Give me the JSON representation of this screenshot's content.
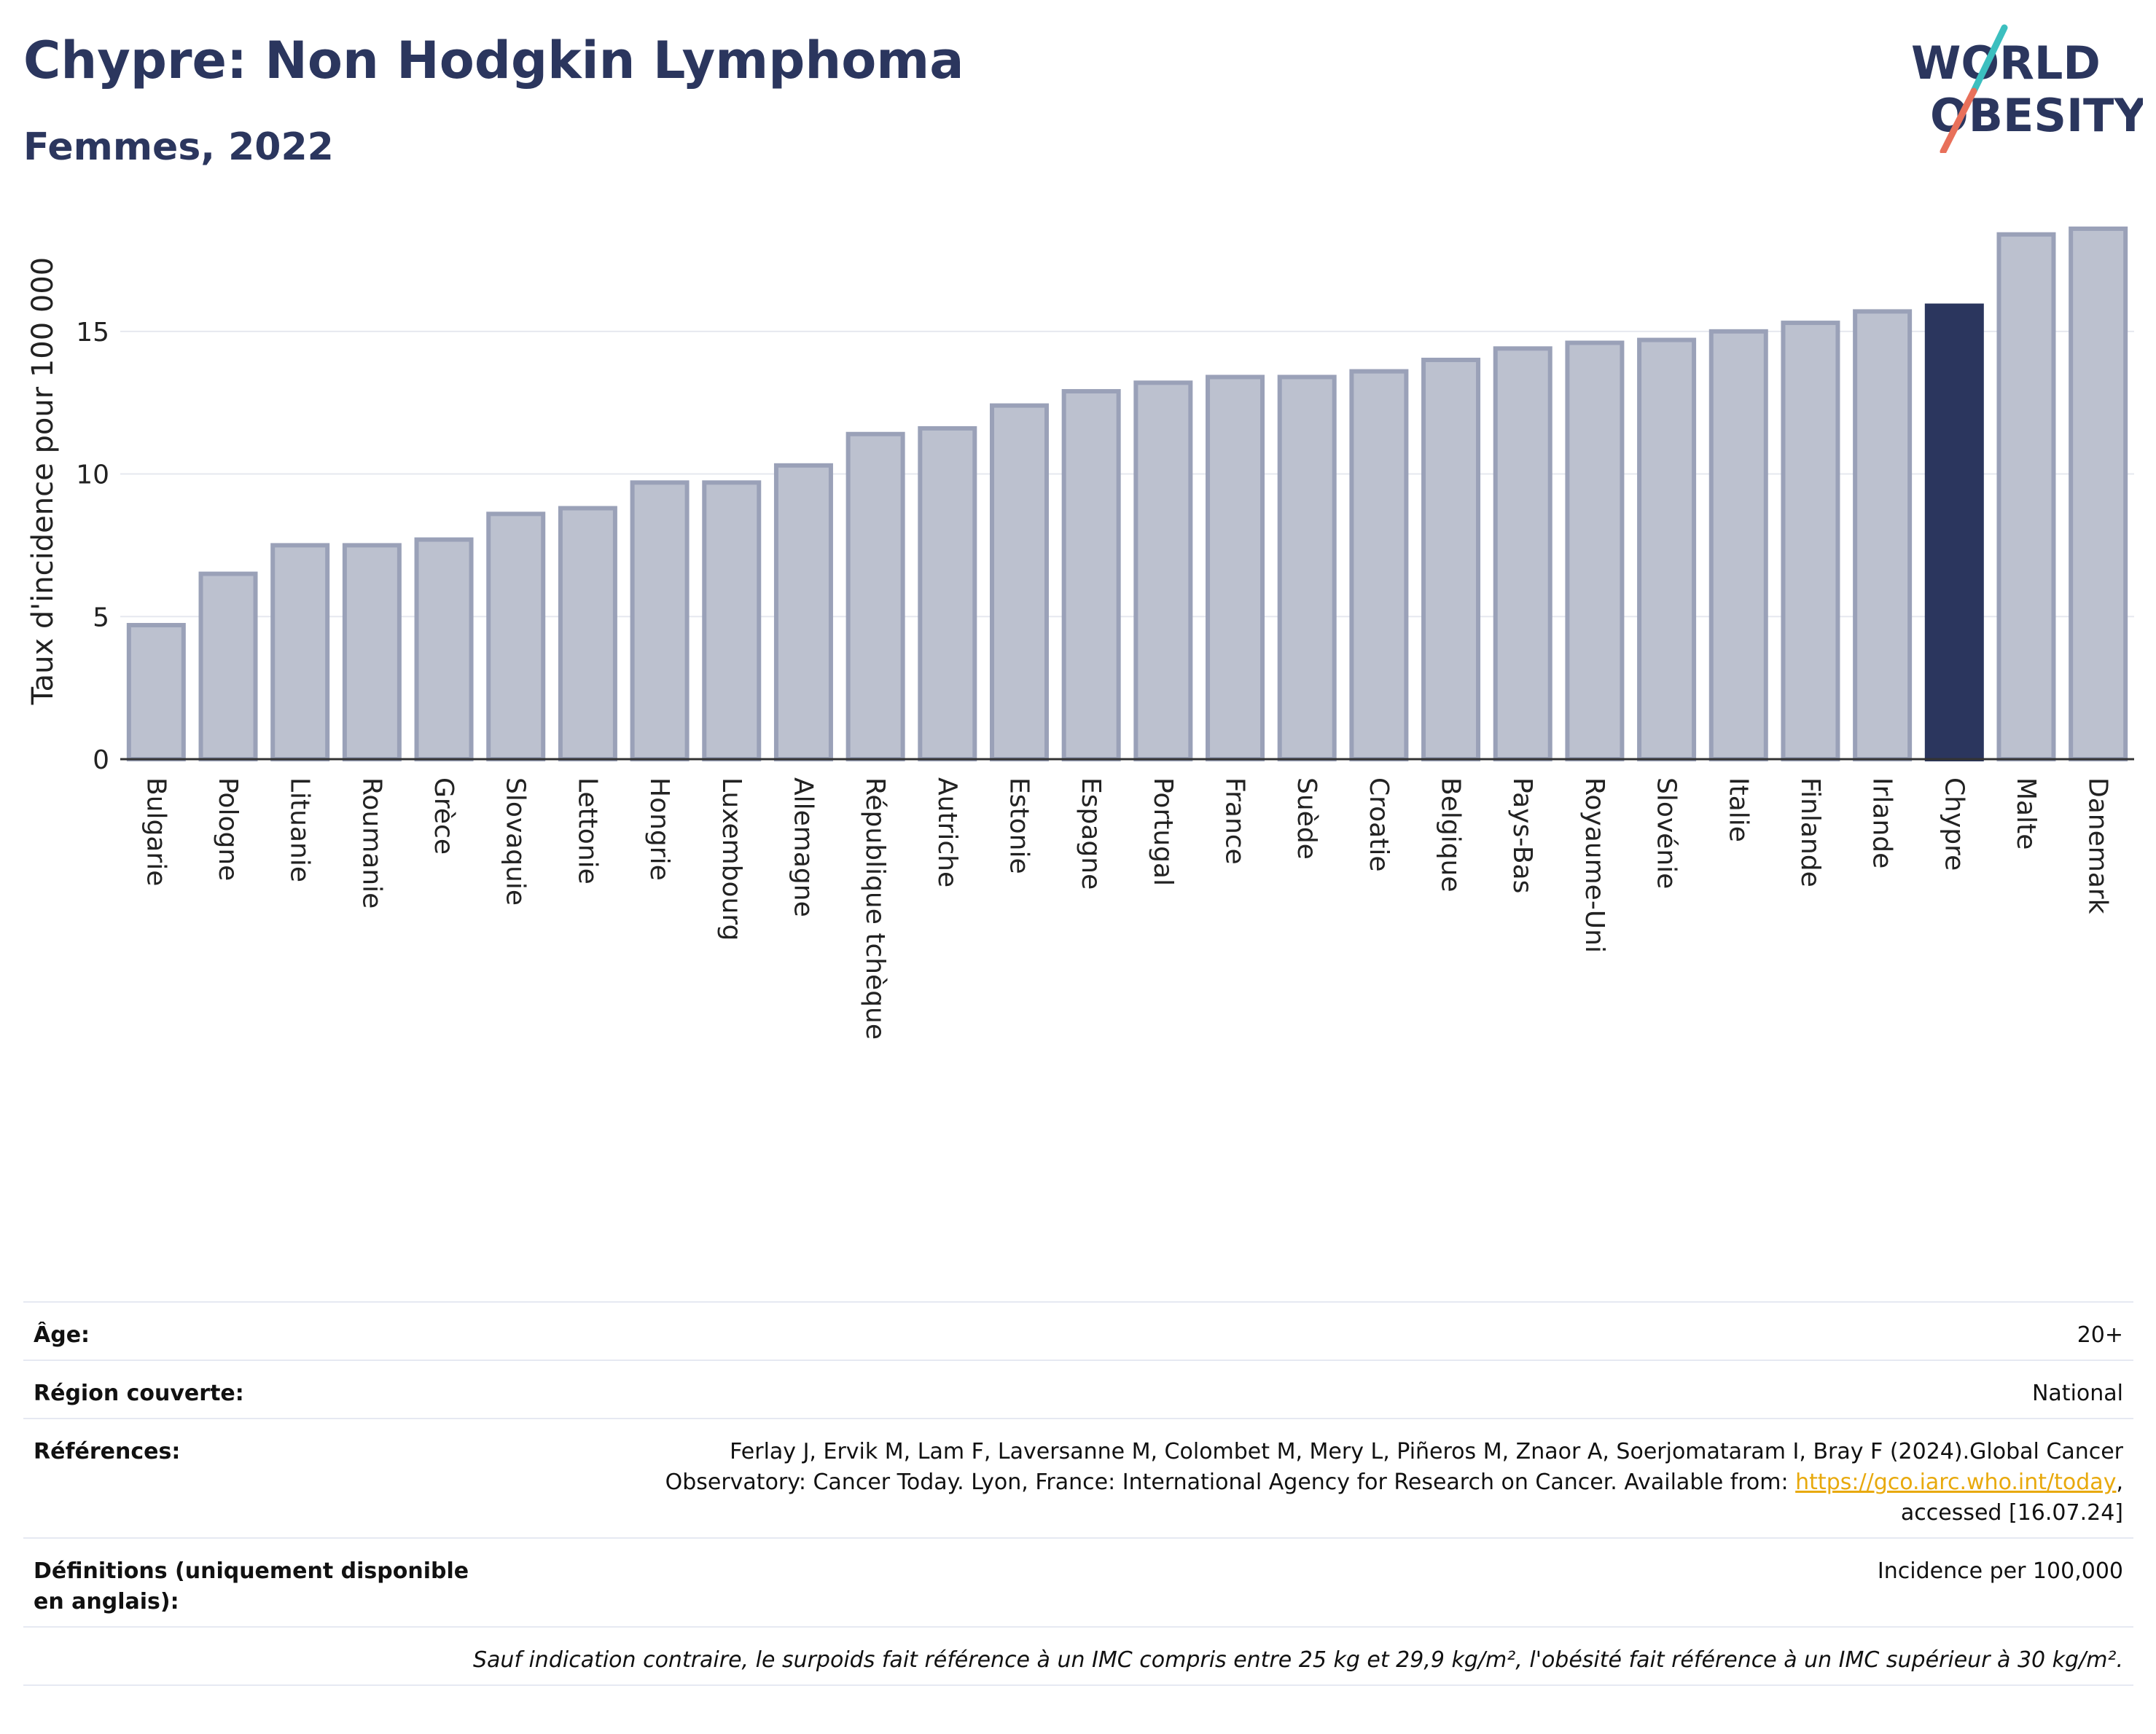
{
  "header": {
    "title": "Chypre: Non Hodgkin Lymphoma",
    "subtitle": "Femmes, 2022"
  },
  "logo": {
    "line1": "WORLD",
    "line2": "OBESITY",
    "accent_teal": "#3cbfbf",
    "accent_coral": "#e8705a",
    "text_color": "#2b365e"
  },
  "chart_data": {
    "type": "bar",
    "ylabel": "Taux d'incidence pour 100 000",
    "xlabel": "",
    "ylim": [
      0,
      18.7
    ],
    "yticks": [
      0,
      5,
      10,
      15
    ],
    "grid": true,
    "highlight": "Chypre",
    "colors": {
      "bar": "#bcc1cf",
      "bar_border": "#9aa1b8",
      "highlight": "#2b365e"
    },
    "categories": [
      "Bulgarie",
      "Pologne",
      "Lituanie",
      "Roumanie",
      "Grèce",
      "Slovaquie",
      "Lettonie",
      "Hongrie",
      "Luxembourg",
      "Allemagne",
      "République tchèque",
      "Autriche",
      "Estonie",
      "Espagne",
      "Portugal",
      "France",
      "Suède",
      "Croatie",
      "Belgique",
      "Pays-Bas",
      "Royaume-Uni",
      "Slovénie",
      "Italie",
      "Finlande",
      "Irlande",
      "Chypre",
      "Malte",
      "Danemark"
    ],
    "values": [
      4.7,
      6.5,
      7.5,
      7.5,
      7.7,
      8.6,
      8.8,
      9.7,
      9.7,
      10.3,
      11.4,
      11.6,
      12.4,
      12.9,
      13.2,
      13.4,
      13.4,
      13.6,
      14.0,
      14.4,
      14.6,
      14.7,
      15.0,
      15.3,
      15.7,
      15.9,
      18.4,
      18.6
    ]
  },
  "info": {
    "age_label": "Âge:",
    "age_value": "20+",
    "region_label": "Région couverte:",
    "region_value": "National",
    "refs_label": "Références:",
    "refs_text_1": "Ferlay J, Ervik M, Lam F, Laversanne M, Colombet M, Mery L, Piñeros M, Znaor A, Soerjomataram I, Bray F (2024).Global Cancer",
    "refs_text_2": "Observatory: Cancer Today. Lyon, France: International Agency for Research on Cancer. Available from:",
    "refs_link": "https://gco.iarc.who.int/today",
    "refs_text_3": "accessed [16.07.24]",
    "defs_label": "Définitions (uniquement disponible en anglais):",
    "defs_value": "Incidence per 100,000",
    "note": "Sauf indication contraire, le surpoids fait référence à un IMC compris entre 25 kg et 29,9 kg/m², l'obésité fait référence à un IMC supérieur à 30 kg/m²."
  }
}
